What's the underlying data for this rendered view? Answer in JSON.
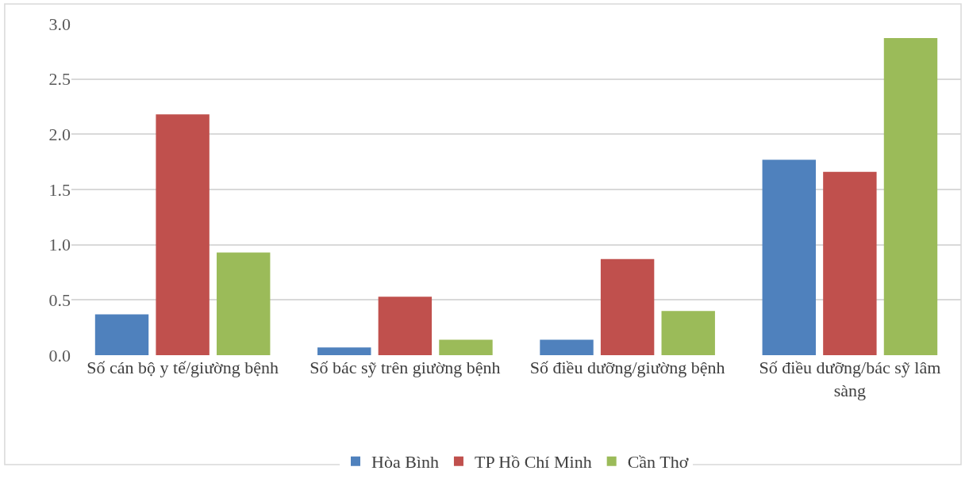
{
  "chart_data": {
    "type": "bar",
    "categories": [
      "Số cán bộ y tế/giường bệnh",
      "Số bác sỹ trên giường bệnh",
      "Số điều dưỡng/giường bệnh",
      "Số điều dưỡng/bác sỹ lâm sàng"
    ],
    "series": [
      {
        "name": "Hòa Bình",
        "color": "#4f81bd",
        "values": [
          0.37,
          0.07,
          0.14,
          1.77
        ]
      },
      {
        "name": "TP Hồ Chí Minh",
        "color": "#c0504d",
        "values": [
          2.18,
          0.53,
          0.87,
          1.66
        ]
      },
      {
        "name": "Cần Thơ",
        "color": "#9bbb59",
        "values": [
          0.93,
          0.14,
          0.4,
          2.87
        ]
      }
    ],
    "ylim": [
      0,
      3.0
    ],
    "yticks": [
      {
        "value": 0,
        "label": "0.0"
      },
      {
        "value": 0.5,
        "label": "0.5"
      },
      {
        "value": 1.0,
        "label": "1.0"
      },
      {
        "value": 1.5,
        "label": "1.5"
      },
      {
        "value": 2.0,
        "label": "2.0"
      },
      {
        "value": 2.5,
        "label": "2.5"
      },
      {
        "value": 3.0,
        "label": "3.0"
      }
    ],
    "grid": "y",
    "legend": "bottom"
  }
}
